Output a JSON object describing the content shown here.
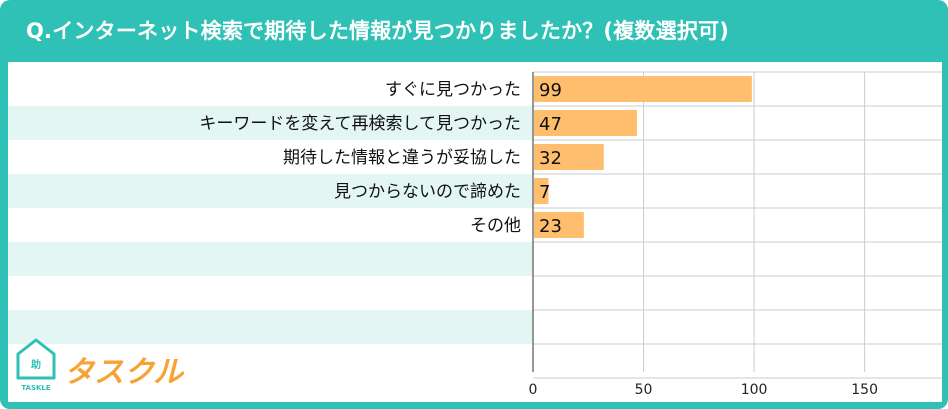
{
  "title": "Q.インターネット検索で期待した情報が見つかりましたか？(複数選択可)",
  "logo": {
    "name": "タスクル",
    "sub": "TASKLE",
    "badge": "助"
  },
  "colors": {
    "frame": "#2fc1b5",
    "bar": "#ffbe6e",
    "stripe": "#e3f6f4",
    "grid": "#cccccc"
  },
  "chart_data": {
    "type": "bar",
    "orientation": "horizontal",
    "categories": [
      "すぐに見つかった",
      "キーワードを変えて再検索して見つかった",
      "期待した情報と違うが妥協した",
      "見つからないので諦めた",
      "その他"
    ],
    "values": [
      99,
      47,
      32,
      7,
      23
    ],
    "xlim": [
      0,
      185
    ],
    "xticks": [
      0,
      50,
      100,
      150
    ],
    "grid": true,
    "legend": "none"
  }
}
